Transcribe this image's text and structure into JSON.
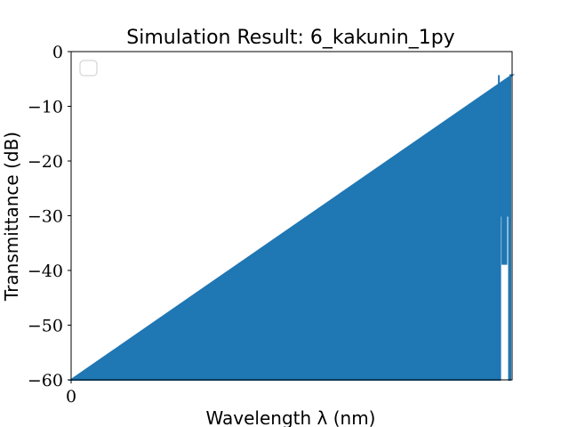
{
  "chart_data": {
    "type": "area",
    "title": "Simulation Result: 6_kakunin_1py",
    "xlabel": "Wavelength λ (nm)",
    "ylabel": "Transmittance (dB)",
    "ylim": [
      -60,
      0
    ],
    "xlim": [
      0,
      100
    ],
    "x_ticks": [
      "0"
    ],
    "y_ticks": [
      "0",
      "−10",
      "−20",
      "−30",
      "−40",
      "−50",
      "−60"
    ],
    "legend": {
      "placement": "top-left",
      "entries": []
    },
    "grid": false,
    "colors": {
      "series": "#1f77b4",
      "axis": "#000000"
    },
    "series": [
      {
        "x": [
          0,
          97.0,
          97.0,
          97.0,
          97.3,
          97.3,
          97.8,
          97.8,
          98.7,
          98.7,
          99.3,
          99.3,
          99.6,
          99.6,
          100
        ],
        "values": [
          -60,
          -60,
          -4.3,
          -60,
          -60,
          -30,
          -30,
          -38.8,
          -38.8,
          -30,
          -30,
          -60,
          -60,
          -4.3,
          -4.3
        ]
      }
    ]
  }
}
